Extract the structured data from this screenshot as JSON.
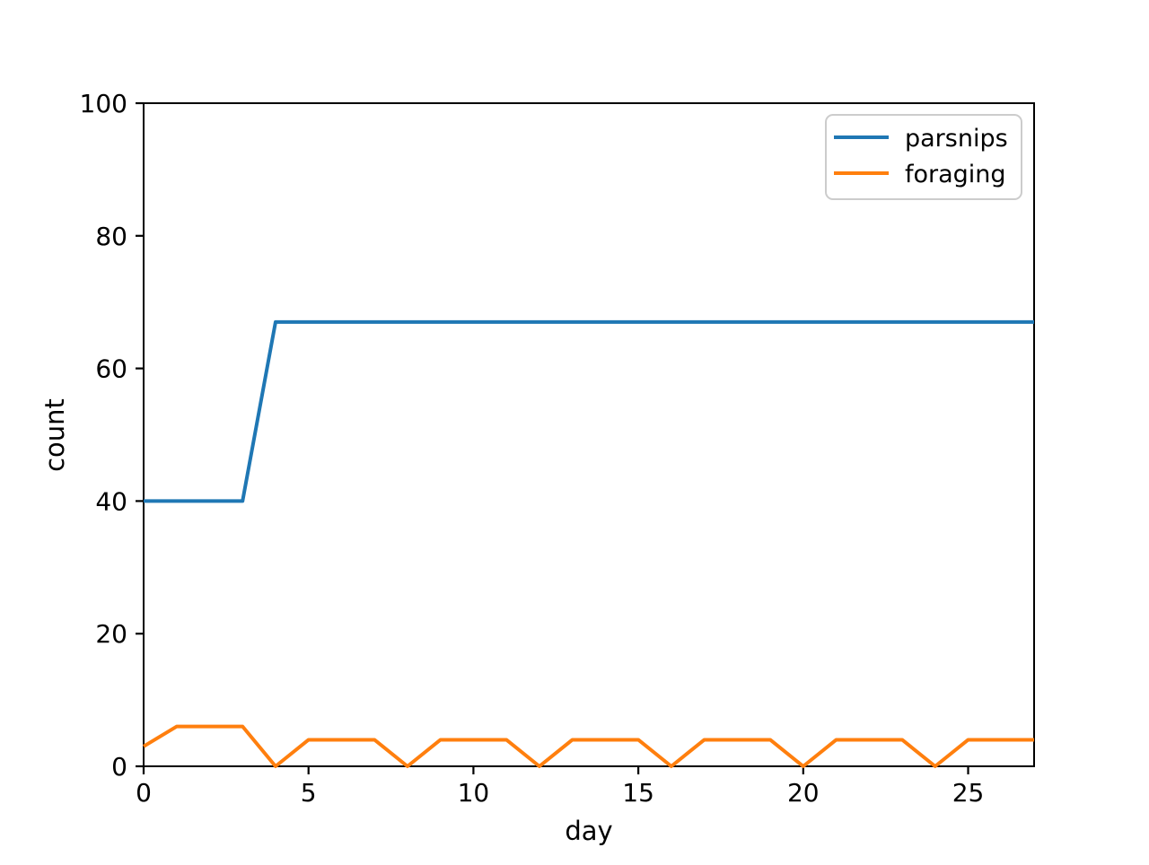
{
  "chart_data": {
    "type": "line",
    "title": "",
    "xlabel": "day",
    "ylabel": "count",
    "x": [
      0,
      1,
      2,
      3,
      4,
      5,
      6,
      7,
      8,
      9,
      10,
      11,
      12,
      13,
      14,
      15,
      16,
      17,
      18,
      19,
      20,
      21,
      22,
      23,
      24,
      25,
      26,
      27
    ],
    "series": [
      {
        "name": "parsnips",
        "color": "#1f77b4",
        "values": [
          40,
          40,
          40,
          40,
          67,
          67,
          67,
          67,
          67,
          67,
          67,
          67,
          67,
          67,
          67,
          67,
          67,
          67,
          67,
          67,
          67,
          67,
          67,
          67,
          67,
          67,
          67,
          67
        ]
      },
      {
        "name": "foraging",
        "color": "#ff7f0e",
        "values": [
          3,
          6,
          6,
          6,
          0,
          4,
          4,
          4,
          0,
          4,
          4,
          4,
          0,
          4,
          4,
          4,
          0,
          4,
          4,
          4,
          0,
          4,
          4,
          4,
          0,
          4,
          4,
          4
        ]
      }
    ],
    "xlim": [
      0,
      27
    ],
    "ylim": [
      0,
      100
    ],
    "xticks": [
      0,
      5,
      10,
      15,
      20,
      25
    ],
    "yticks": [
      0,
      20,
      40,
      60,
      80,
      100
    ],
    "grid": false,
    "legend_position": "upper right",
    "legend_entries": [
      "parsnips",
      "foraging"
    ]
  },
  "colors": {
    "background": "#ffffff",
    "spine": "#000000",
    "text": "#000000",
    "legend_border": "#cccccc",
    "series_parsnips": "#1f77b4",
    "series_foraging": "#ff7f0e"
  }
}
